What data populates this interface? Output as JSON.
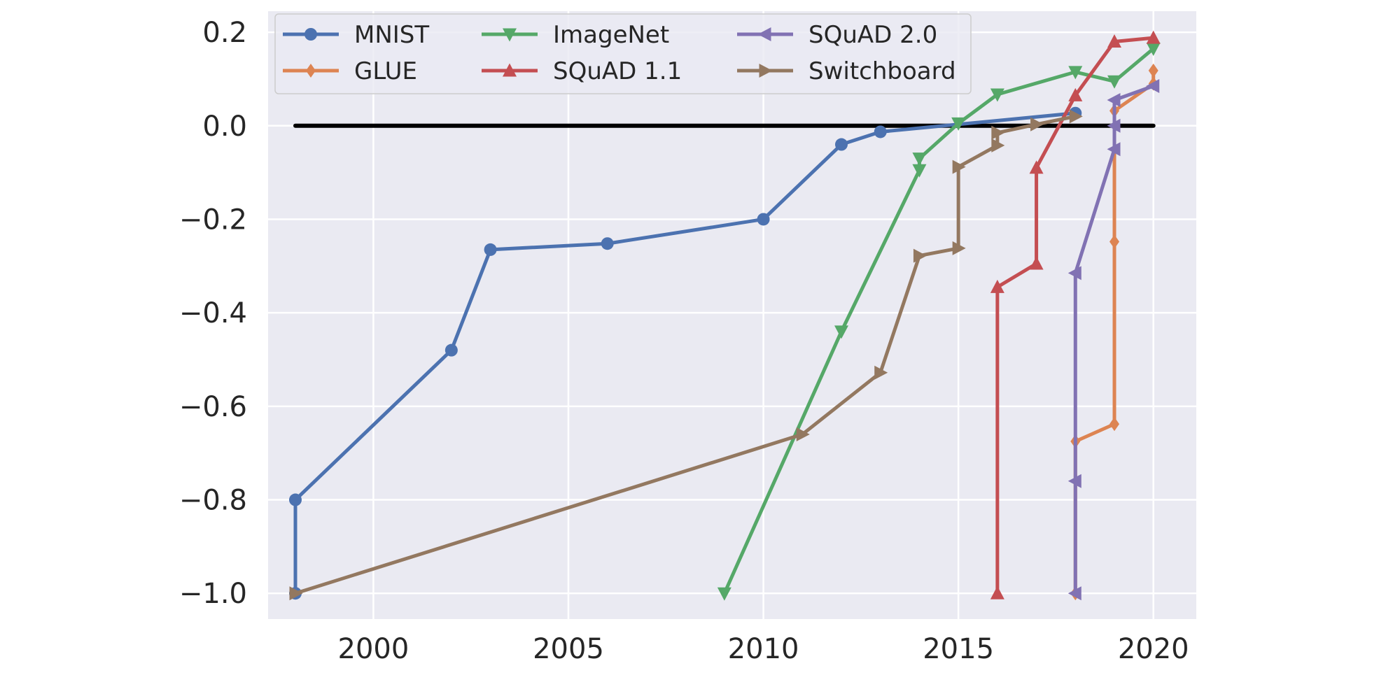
{
  "chart_data": {
    "type": "line",
    "title": "",
    "xlabel": "",
    "ylabel": "",
    "xlim": [
      1997.3,
      2021.1
    ],
    "ylim": [
      -1.055,
      0.245
    ],
    "x_ticks": [
      2000,
      2005,
      2010,
      2015,
      2020
    ],
    "x_tick_labels": [
      "2000",
      "2005",
      "2010",
      "2015",
      "2020"
    ],
    "y_ticks": [
      0.2,
      0.0,
      -0.2,
      -0.4,
      -0.6,
      -0.8,
      -1.0
    ],
    "y_tick_labels": [
      "0.2",
      "0.0",
      "−0.2",
      "−0.4",
      "−0.6",
      "−0.8",
      "−1.0"
    ],
    "grid": true,
    "legend": {
      "position": "top-left",
      "columns": 3
    },
    "reference_line": {
      "y": 0.0,
      "x_range": [
        1998,
        2020
      ],
      "color": "#000000"
    },
    "series": [
      {
        "name": "MNIST",
        "color": "#4c72b0",
        "marker": "circle",
        "points": [
          [
            1998,
            -1.0
          ],
          [
            1998,
            -0.8
          ],
          [
            2002,
            -0.48
          ],
          [
            2003,
            -0.265
          ],
          [
            2006,
            -0.252
          ],
          [
            2010,
            -0.2
          ],
          [
            2012,
            -0.04
          ],
          [
            2013,
            -0.013
          ],
          [
            2018,
            0.027
          ]
        ]
      },
      {
        "name": "GLUE",
        "color": "#dd8452",
        "marker": "diamond",
        "points": [
          [
            2018,
            -1.0
          ],
          [
            2018,
            -0.675
          ],
          [
            2019,
            -0.638
          ],
          [
            2019,
            -0.248
          ],
          [
            2019,
            0.032
          ],
          [
            2020,
            0.09
          ],
          [
            2020,
            0.118
          ]
        ]
      },
      {
        "name": "ImageNet",
        "color": "#55a868",
        "marker": "triangle-down",
        "points": [
          [
            2009,
            -1.0
          ],
          [
            2012,
            -0.44
          ],
          [
            2014,
            -0.095
          ],
          [
            2014,
            -0.07
          ],
          [
            2015,
            0.005
          ],
          [
            2016,
            0.067
          ],
          [
            2018,
            0.115
          ],
          [
            2019,
            0.095
          ],
          [
            2020,
            0.165
          ]
        ]
      },
      {
        "name": "SQuAD 1.1",
        "color": "#c44e52",
        "marker": "triangle-up",
        "points": [
          [
            2016,
            -1.0
          ],
          [
            2016,
            -0.345
          ],
          [
            2017,
            -0.295
          ],
          [
            2017,
            -0.09
          ],
          [
            2018,
            0.065
          ],
          [
            2019,
            0.18
          ],
          [
            2020,
            0.188
          ]
        ]
      },
      {
        "name": "SQuAD 2.0",
        "color": "#8172b3",
        "marker": "triangle-left",
        "points": [
          [
            2018,
            -1.0
          ],
          [
            2018,
            -0.76
          ],
          [
            2018,
            -0.315
          ],
          [
            2019,
            -0.05
          ],
          [
            2019,
            0.0
          ],
          [
            2019,
            0.055
          ],
          [
            2020,
            0.085
          ]
        ]
      },
      {
        "name": "Switchboard",
        "color": "#937860",
        "marker": "triangle-right",
        "points": [
          [
            1998,
            -1.0
          ],
          [
            2011,
            -0.66
          ],
          [
            2013,
            -0.528
          ],
          [
            2014,
            -0.278
          ],
          [
            2015,
            -0.262
          ],
          [
            2015,
            -0.088
          ],
          [
            2016,
            -0.042
          ],
          [
            2016,
            -0.015
          ],
          [
            2017,
            0.003
          ],
          [
            2018,
            0.02
          ]
        ]
      }
    ]
  }
}
